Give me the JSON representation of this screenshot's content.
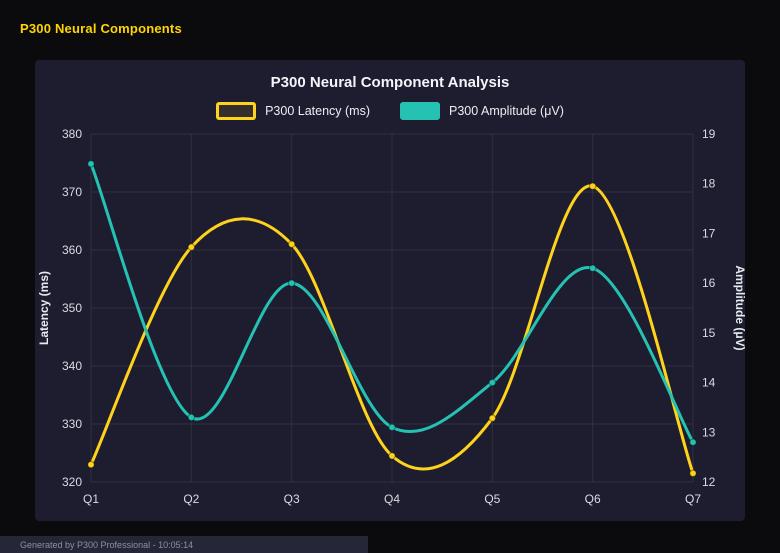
{
  "page": {
    "title": "P300 Neural Components",
    "footer": "Generated by P300 Professional - 10:05:14"
  },
  "chart": {
    "title": "P300 Neural Component Analysis",
    "legend": [
      {
        "label": "P300 Latency (ms)",
        "color": "#ffd21c",
        "filled": false
      },
      {
        "label": "P300 Amplitude (μV)",
        "color": "#25c2b4",
        "filled": true
      }
    ]
  },
  "chart_data": {
    "type": "line",
    "categories": [
      "Q1",
      "Q2",
      "Q3",
      "Q4",
      "Q5",
      "Q6",
      "Q7"
    ],
    "series": [
      {
        "name": "P300 Latency (ms)",
        "axis": "left",
        "color": "#ffd21c",
        "values": [
          323,
          360.5,
          361,
          324.5,
          331,
          371,
          321.5
        ]
      },
      {
        "name": "P300 Amplitude (μV)",
        "axis": "right",
        "color": "#25c2b4",
        "values": [
          18.4,
          13.3,
          16.0,
          13.1,
          14.0,
          16.3,
          12.8
        ]
      }
    ],
    "left_axis": {
      "label": "Latency (ms)",
      "min": 320,
      "max": 380,
      "step": 10
    },
    "right_axis": {
      "label": "Amplitude (μV)",
      "min": 12,
      "max": 19,
      "step": 1
    },
    "grid": true,
    "legend_position": "top",
    "title": "P300 Neural Component Analysis"
  },
  "style": {
    "panel_bg": "#1d1d2f",
    "page_bg": "#0b0b0e",
    "grid_color": "rgba(255,255,255,0.08)",
    "tick_color": "#d9dbe4",
    "axis_title_color": "#e8eaf2"
  }
}
